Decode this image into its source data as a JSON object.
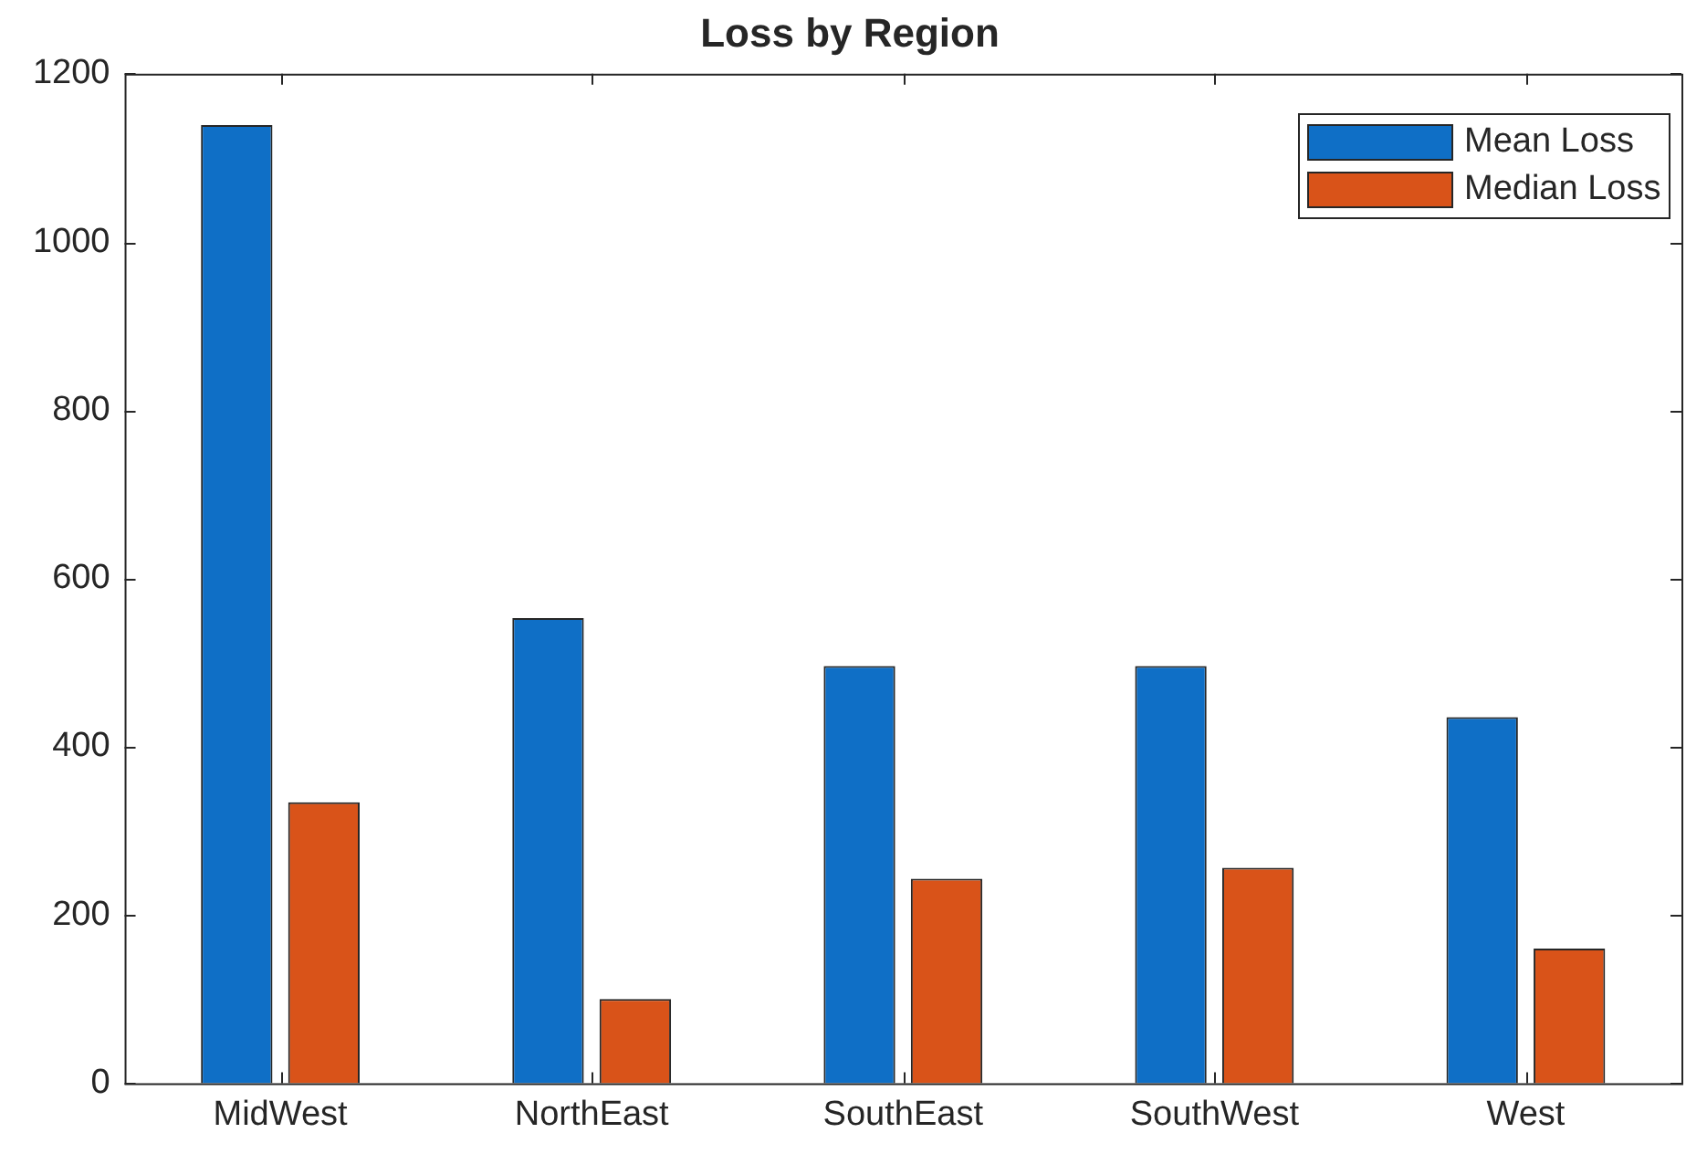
{
  "chart_data": {
    "type": "bar",
    "title": "Loss by Region",
    "categories": [
      "MidWest",
      "NorthEast",
      "SouthEast",
      "SouthWest",
      "West"
    ],
    "series": [
      {
        "name": "Mean Loss",
        "color": "#0f6fc6",
        "values": [
          1139,
          553,
          496,
          496,
          435
        ]
      },
      {
        "name": "Median Loss",
        "color": "#d95319",
        "values": [
          334,
          100,
          243,
          256,
          160
        ]
      }
    ],
    "ylim": [
      0,
      1200
    ],
    "yticks": [
      0,
      200,
      400,
      600,
      800,
      1000,
      1200
    ],
    "grid": false,
    "legend": "top right"
  }
}
